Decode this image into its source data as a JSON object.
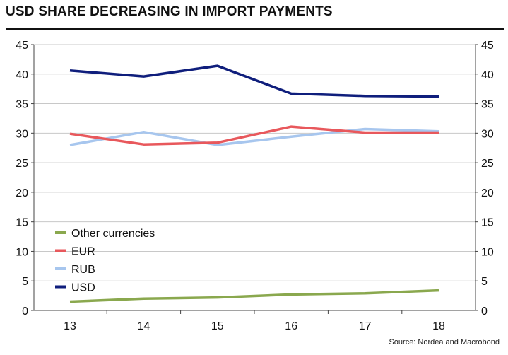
{
  "title": "USD SHARE DECREASING IN IMPORT PAYMENTS",
  "source": "Source: Nordea and Macrobond",
  "chart_data": {
    "type": "line",
    "title": "USD SHARE DECREASING IN IMPORT PAYMENTS",
    "xlabel": "",
    "ylabel": "",
    "x": [
      "13",
      "14",
      "15",
      "16",
      "17",
      "18"
    ],
    "ylim": [
      0,
      45
    ],
    "yticks": [
      0,
      5,
      10,
      15,
      20,
      25,
      30,
      35,
      40,
      45
    ],
    "grid": "horizontal",
    "legend_position": "lower-left",
    "series": [
      {
        "name": "Other currencies",
        "color": "#8aa84e",
        "values": [
          1.5,
          2.0,
          2.2,
          2.7,
          2.9,
          3.4
        ]
      },
      {
        "name": "EUR",
        "color": "#e8585c",
        "values": [
          29.9,
          28.1,
          28.4,
          31.1,
          30.1,
          30.1
        ]
      },
      {
        "name": "RUB",
        "color": "#a7c6ee",
        "values": [
          28.0,
          30.2,
          28.0,
          29.4,
          30.7,
          30.3
        ]
      },
      {
        "name": "USD",
        "color": "#0f1e7c",
        "values": [
          40.6,
          39.6,
          41.4,
          36.7,
          36.3,
          36.2
        ]
      }
    ]
  }
}
